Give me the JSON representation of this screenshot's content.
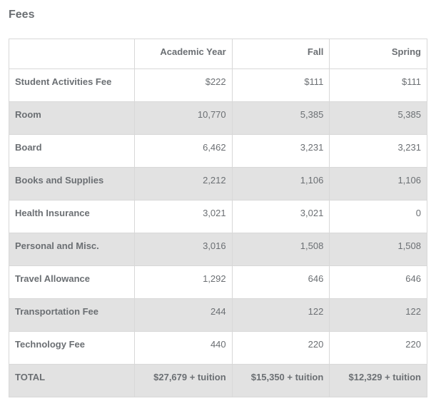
{
  "title": "Fees",
  "table": {
    "columns": [
      "",
      "Academic Year",
      "Fall",
      "Spring"
    ],
    "column_widths": [
      "30%",
      "23.3%",
      "23.3%",
      "23.3%"
    ],
    "header_align": [
      "left",
      "right",
      "right",
      "right"
    ],
    "cell_align": [
      "left",
      "right",
      "right",
      "right"
    ],
    "border_color": "#d8d8d8",
    "text_color": "#6b6f73",
    "background_color": "#ffffff",
    "stripe_color": "#e2e2e2",
    "font_size": 13,
    "rows": [
      {
        "label": "Student Activities Fee",
        "academic_year": "$222",
        "fall": "$111",
        "spring": "$111",
        "striped": false
      },
      {
        "label": "Room",
        "academic_year": "10,770",
        "fall": "5,385",
        "spring": "5,385",
        "striped": true
      },
      {
        "label": "Board",
        "academic_year": "6,462",
        "fall": "3,231",
        "spring": "3,231",
        "striped": false
      },
      {
        "label": "Books and Supplies",
        "academic_year": "2,212",
        "fall": "1,106",
        "spring": "1,106",
        "striped": true
      },
      {
        "label": "Health Insurance",
        "academic_year": "3,021",
        "fall": "3,021",
        "spring": "0",
        "striped": false
      },
      {
        "label": "Personal and Misc.",
        "academic_year": "3,016",
        "fall": "1,508",
        "spring": "1,508",
        "striped": true
      },
      {
        "label": "Travel Allowance",
        "academic_year": "1,292",
        "fall": "646",
        "spring": "646",
        "striped": false
      },
      {
        "label": "Transportation Fee",
        "academic_year": "244",
        "fall": "122",
        "spring": "122",
        "striped": true
      },
      {
        "label": "Technology Fee",
        "academic_year": "440",
        "fall": "220",
        "spring": "220",
        "striped": false
      }
    ],
    "total": {
      "label": "TOTAL",
      "academic_year": "$27,679 + tuition",
      "fall": "$15,350 + tuition",
      "spring": "$12,329 + tuition"
    }
  }
}
